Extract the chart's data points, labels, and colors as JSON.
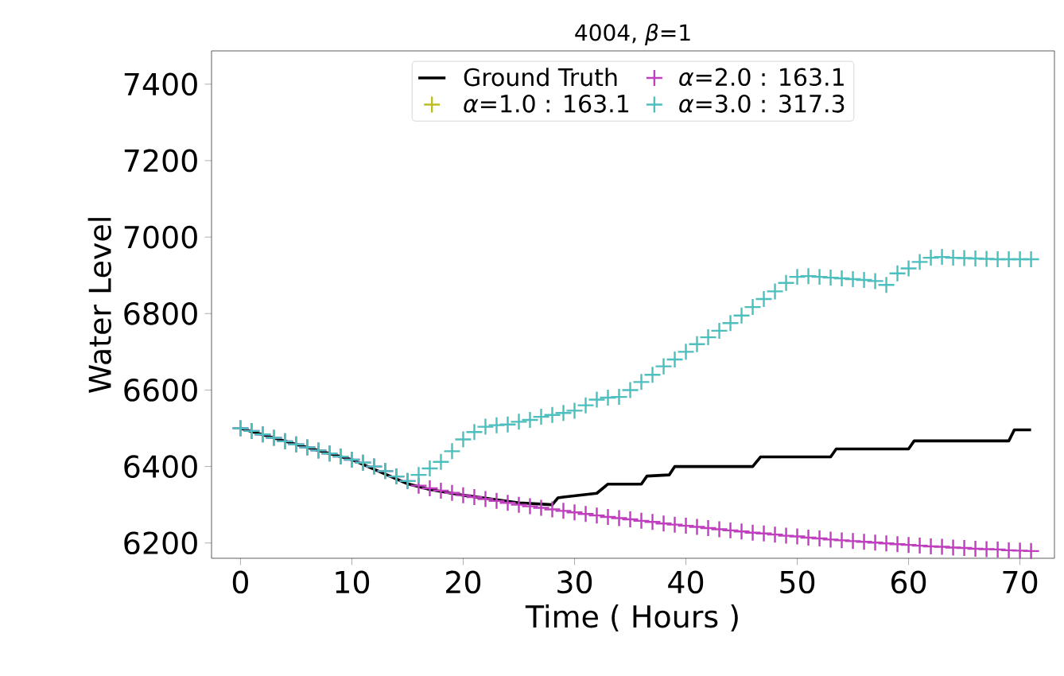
{
  "chart_data": {
    "type": "scatter",
    "title": "4004, *β*=1",
    "xlabel": "Time ( Hours )",
    "ylabel": "Water Level",
    "x": [
      0,
      1,
      2,
      3,
      4,
      5,
      6,
      7,
      8,
      9,
      10,
      11,
      12,
      13,
      14,
      15,
      16,
      17,
      18,
      19,
      20,
      21,
      22,
      23,
      24,
      25,
      26,
      27,
      28,
      29,
      30,
      31,
      32,
      33,
      34,
      35,
      36,
      37,
      38,
      39,
      40,
      41,
      42,
      43,
      44,
      45,
      46,
      47,
      48,
      49,
      50,
      51,
      52,
      53,
      54,
      55,
      56,
      57,
      58,
      59,
      60,
      61,
      62,
      63,
      64,
      65,
      66,
      67,
      68,
      69,
      70,
      71
    ],
    "series": [
      {
        "name": "Ground Truth",
        "type": "line",
        "color": "#000000",
        "marker": "none",
        "x": [
          0,
          5,
          10,
          13,
          15,
          17,
          20,
          25,
          28,
          28.5,
          29,
          32,
          33,
          36,
          36.5,
          38.5,
          39,
          46,
          46.7,
          53,
          53.5,
          60,
          60.5,
          69,
          69.5,
          71
        ],
        "values": [
          6500,
          6458,
          6418,
          6380,
          6355,
          6340,
          6325,
          6305,
          6300,
          6318,
          6320,
          6330,
          6354,
          6354,
          6375,
          6378,
          6400,
          6400,
          6425,
          6425,
          6446,
          6446,
          6467,
          6467,
          6496,
          6496
        ]
      },
      {
        "name": "*α*=1.0 : 163.1",
        "color": "#bcbd22",
        "marker": "cross",
        "values": [
          null,
          null,
          null,
          null,
          null,
          null,
          null,
          null,
          null,
          null,
          null,
          null,
          null,
          null,
          null,
          null,
          null,
          null,
          null,
          null,
          null,
          null,
          null,
          null,
          null,
          null,
          null,
          null,
          null,
          null,
          null,
          null,
          null,
          null,
          null,
          null,
          null,
          null,
          null,
          null,
          null,
          null,
          null,
          null,
          null,
          null,
          null,
          null,
          null,
          null,
          null,
          null,
          null,
          null,
          null,
          null,
          null,
          null,
          null,
          null,
          null,
          null,
          null,
          null,
          null,
          null,
          null,
          null,
          null,
          null,
          null,
          null
        ]
      },
      {
        "name": "*α*=2.0 : 163.1",
        "color": "#bf3fbf",
        "marker": "cross",
        "values": [
          6500,
          6493,
          6484,
          6475,
          6466,
          6458,
          6450,
          6442,
          6434,
          6426,
          6418,
          6410,
          6400,
          6388,
          6374,
          6362,
          6350,
          6343,
          6337,
          6331,
          6325,
          6320,
          6315,
          6310,
          6305,
          6300,
          6296,
          6292,
          6288,
          6284,
          6280,
          6276,
          6272,
          6268,
          6265,
          6262,
          6258,
          6255,
          6251,
          6248,
          6245,
          6242,
          6239,
          6236,
          6233,
          6230,
          6227,
          6225,
          6222,
          6219,
          6217,
          6214,
          6212,
          6209,
          6207,
          6205,
          6203,
          6201,
          6199,
          6197,
          6195,
          6193,
          6191,
          6190,
          6188,
          6187,
          6185,
          6184,
          6183,
          6181,
          6180,
          6179
        ]
      },
      {
        "name": "*α*=3.0 : 317.3",
        "color": "#4cbfbf",
        "marker": "cross",
        "values": [
          6500,
          6493,
          6484,
          6475,
          6466,
          6458,
          6450,
          6442,
          6434,
          6426,
          6418,
          6410,
          6400,
          6388,
          6374,
          6362,
          6378,
          6395,
          6412,
          6440,
          6471,
          6490,
          6504,
          6508,
          6510,
          6517,
          6522,
          6530,
          6535,
          6540,
          6546,
          6560,
          6575,
          6580,
          6582,
          6600,
          6621,
          6640,
          6662,
          6680,
          6700,
          6720,
          6738,
          6755,
          6775,
          6795,
          6817,
          6838,
          6858,
          6880,
          6896,
          6898,
          6896,
          6894,
          6892,
          6890,
          6888,
          6885,
          6875,
          6905,
          6918,
          6935,
          6946,
          6948,
          6946,
          6945,
          6944,
          6943,
          6942,
          6942,
          6942,
          6942
        ]
      }
    ],
    "xlim": [
      -2.6,
      73.1
    ],
    "ylim": [
      6160,
      7487
    ],
    "xticks": [
      0,
      10,
      20,
      30,
      40,
      50,
      60,
      70
    ],
    "yticks": [
      6200,
      6400,
      6600,
      6800,
      7000,
      7200,
      7400
    ],
    "legend": "top",
    "grid": false
  }
}
